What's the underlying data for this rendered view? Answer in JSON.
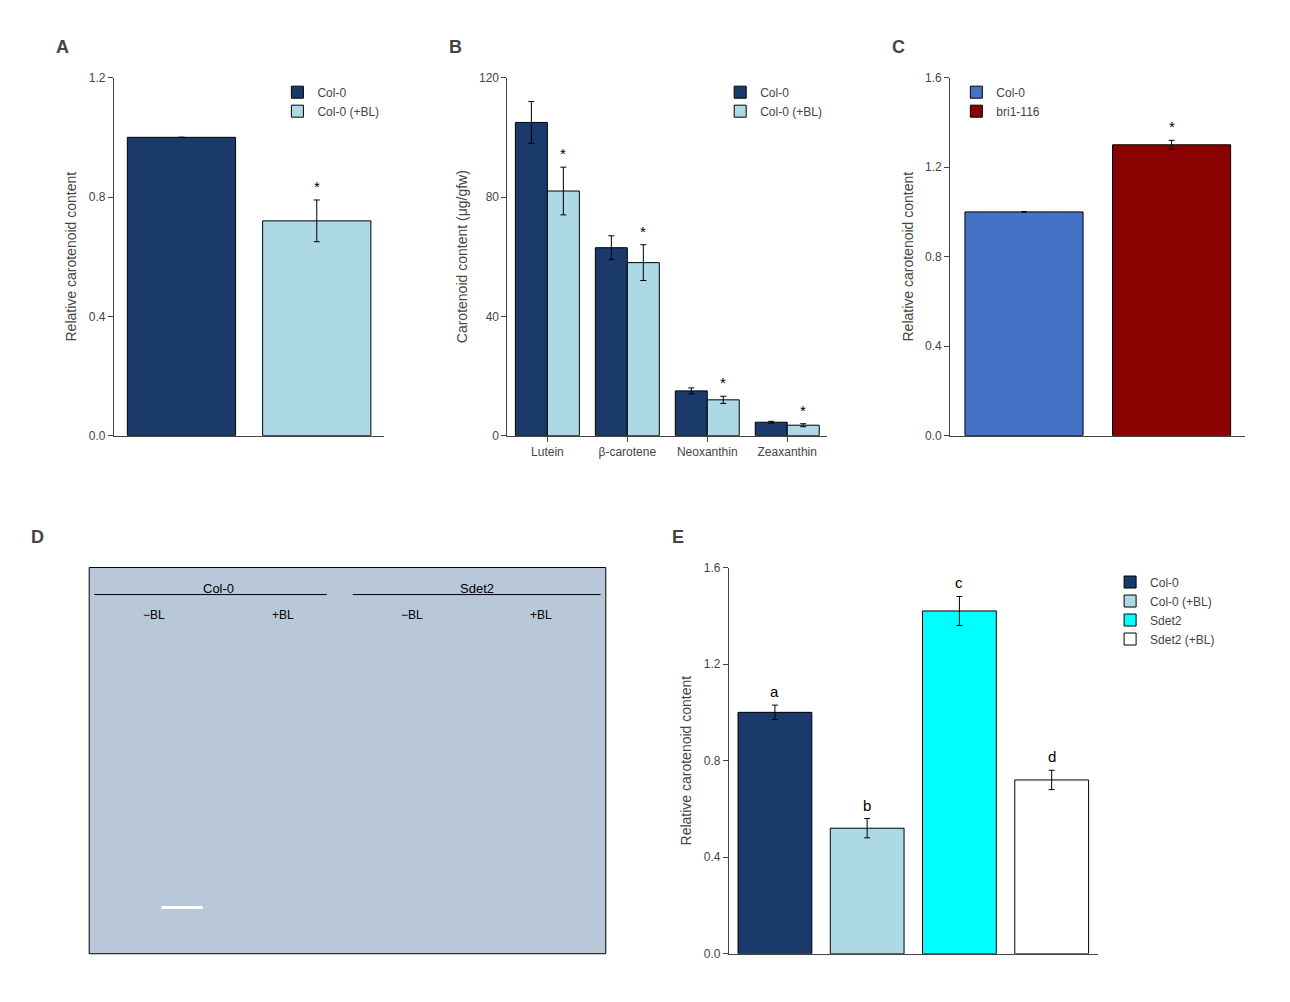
{
  "chart_data": [
    {
      "type": "bar",
      "title": "A",
      "categories": [
        "Col-0",
        "Col-0 (+BL)"
      ],
      "values": [
        1.0,
        0.72
      ],
      "errors": [
        0.0,
        0.07
      ],
      "colors": [
        "#1a3a6b",
        "#add8e6"
      ],
      "ylabel": "Relative carotenoid content",
      "ylim": [
        0,
        1.2
      ],
      "yticks": [
        {
          "value": 0,
          "label": "0.0"
        },
        0.4,
        0.8,
        1.2
      ],
      "annotations": [
        {
          "x": "Col-0 (+BL)",
          "text": "*"
        }
      ],
      "legend": "upper right",
      "tick_labels": "y",
      "grid": false
    },
    {
      "type": "bar",
      "title": "B",
      "categories": [
        "Lutein",
        "β-carotene",
        "Neoxanthin",
        "Zeaxanthin"
      ],
      "series": [
        {
          "name": "Col-0",
          "color": "#1a3a6b",
          "values": [
            105,
            63,
            15,
            4.5
          ],
          "errors": [
            7,
            4,
            1.0,
            0.3
          ]
        },
        {
          "name": "Col-0 (+BL)",
          "color": "#add8e6",
          "values": [
            82,
            58,
            12,
            3.5
          ],
          "errors": [
            8,
            6,
            1.2,
            0.5
          ]
        }
      ],
      "ylabel": "Carotenoid content (μg/gfw)",
      "ylim": [
        0,
        120
      ],
      "yticks": [
        0,
        40,
        80,
        120
      ],
      "annotations": [
        {
          "x": "Lutein",
          "series": "Col-0 (+BL)",
          "text": "*"
        },
        {
          "x": "β-carotene",
          "series": "Col-0 (+BL)",
          "text": "*"
        },
        {
          "x": "Neoxanthin",
          "series": "Col-0 (+BL)",
          "text": "*"
        },
        {
          "x": "Zeaxanthin",
          "series": "Col-0 (+BL)",
          "text": "*"
        }
      ],
      "legend": "upper right",
      "grid": false
    },
    {
      "type": "bar",
      "title": "C",
      "categories": [
        "Col-0",
        "bri1-116"
      ],
      "values": [
        1.0,
        1.3
      ],
      "errors": [
        0.0,
        0.02
      ],
      "colors": [
        "#4472c4",
        "#8b0000"
      ],
      "ylabel": "Relative carotenoid content",
      "ylim": [
        0,
        1.6
      ],
      "yticks": [
        {
          "value": 0,
          "label": "0.0"
        },
        0.4,
        0.8,
        1.2,
        1.6
      ],
      "annotations": [
        {
          "x": "bri1-116",
          "text": "*"
        }
      ],
      "legend": "upper left",
      "tick_labels": "y",
      "grid": false
    },
    {
      "type": "image",
      "title": "D",
      "color": "#b8c8d8",
      "categories": [
        "Col-0",
        "Sdet2"
      ],
      "annotations": [
        "−BL",
        "+BL",
        "−BL",
        "+BL"
      ],
      "tick_labels": false
    },
    {
      "type": "bar",
      "title": "E",
      "categories": [
        "Col-0",
        "Col-0 (+BL)",
        "Sdet2",
        "Sdet2 (+BL)"
      ],
      "values": [
        1.0,
        0.52,
        1.42,
        0.72
      ],
      "errors": [
        0.03,
        0.04,
        0.06,
        0.04
      ],
      "colors": [
        "#1a3a6b",
        "#add8e6",
        "#00ffff",
        "#ffffff"
      ],
      "ylabel": "Relative carotenoid content",
      "ylim": [
        0,
        1.6
      ],
      "yticks": [
        {
          "value": 0,
          "label": "0.0"
        },
        0.4,
        0.8,
        1.2,
        1.6
      ],
      "annotations": [
        {
          "x": "Col-0",
          "text": "a"
        },
        {
          "x": "Col-0 (+BL)",
          "text": "b"
        },
        {
          "x": "Sdet2",
          "text": "c"
        },
        {
          "x": "Sdet2 (+BL)",
          "text": "d"
        }
      ],
      "legend": "upper right",
      "tick_labels": "y",
      "grid": false
    }
  ]
}
